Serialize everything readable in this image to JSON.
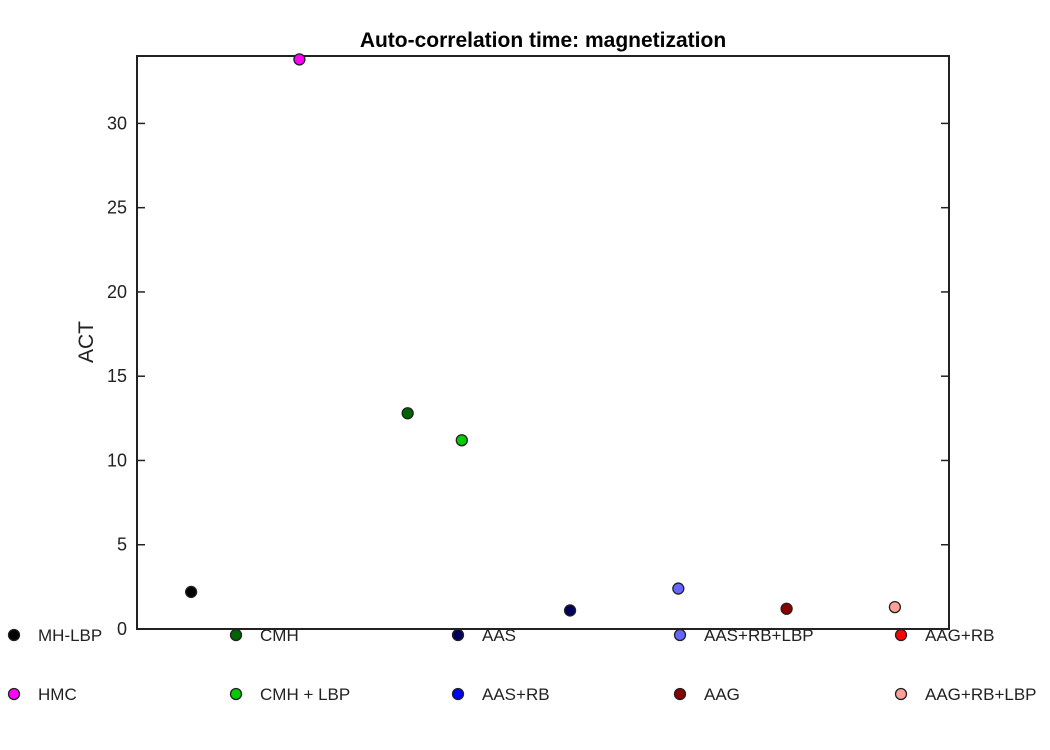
{
  "chart_data": {
    "type": "scatter",
    "title": "Auto-correlation time: magnetization",
    "xlabel": "",
    "ylabel": "ACT",
    "xlim": [
      0,
      15
    ],
    "ylim": [
      0,
      34
    ],
    "yticks": [
      0,
      5,
      10,
      15,
      20,
      25,
      30
    ],
    "grid": false,
    "legend_position": "bottom",
    "series": [
      {
        "name": "MH-LBP",
        "color": "#000000",
        "x": 1,
        "y": 2.2
      },
      {
        "name": "HMC",
        "color": "#ff00ff",
        "x": 3,
        "y": 33.8
      },
      {
        "name": "CMH",
        "color": "#006400",
        "x": 5,
        "y": 12.8
      },
      {
        "name": "CMH + LBP",
        "color": "#00cc00",
        "x": 6,
        "y": 11.2
      },
      {
        "name": "AAS",
        "color": "#00005a",
        "x": 8,
        "y": 1.1
      },
      {
        "name": "AAS+RB",
        "color": "#0000ff",
        "x": null,
        "y": null
      },
      {
        "name": "AAS+RB+LBP",
        "color": "#6666ff",
        "x": 10,
        "y": 2.4
      },
      {
        "name": "AAG",
        "color": "#8b0000",
        "x": 12,
        "y": 1.2
      },
      {
        "name": "AAG+RB",
        "color": "#ff0000",
        "x": null,
        "y": null
      },
      {
        "name": "AAG+RB+LBP",
        "color": "#ffa09a",
        "x": 14,
        "y": 1.3
      }
    ]
  }
}
